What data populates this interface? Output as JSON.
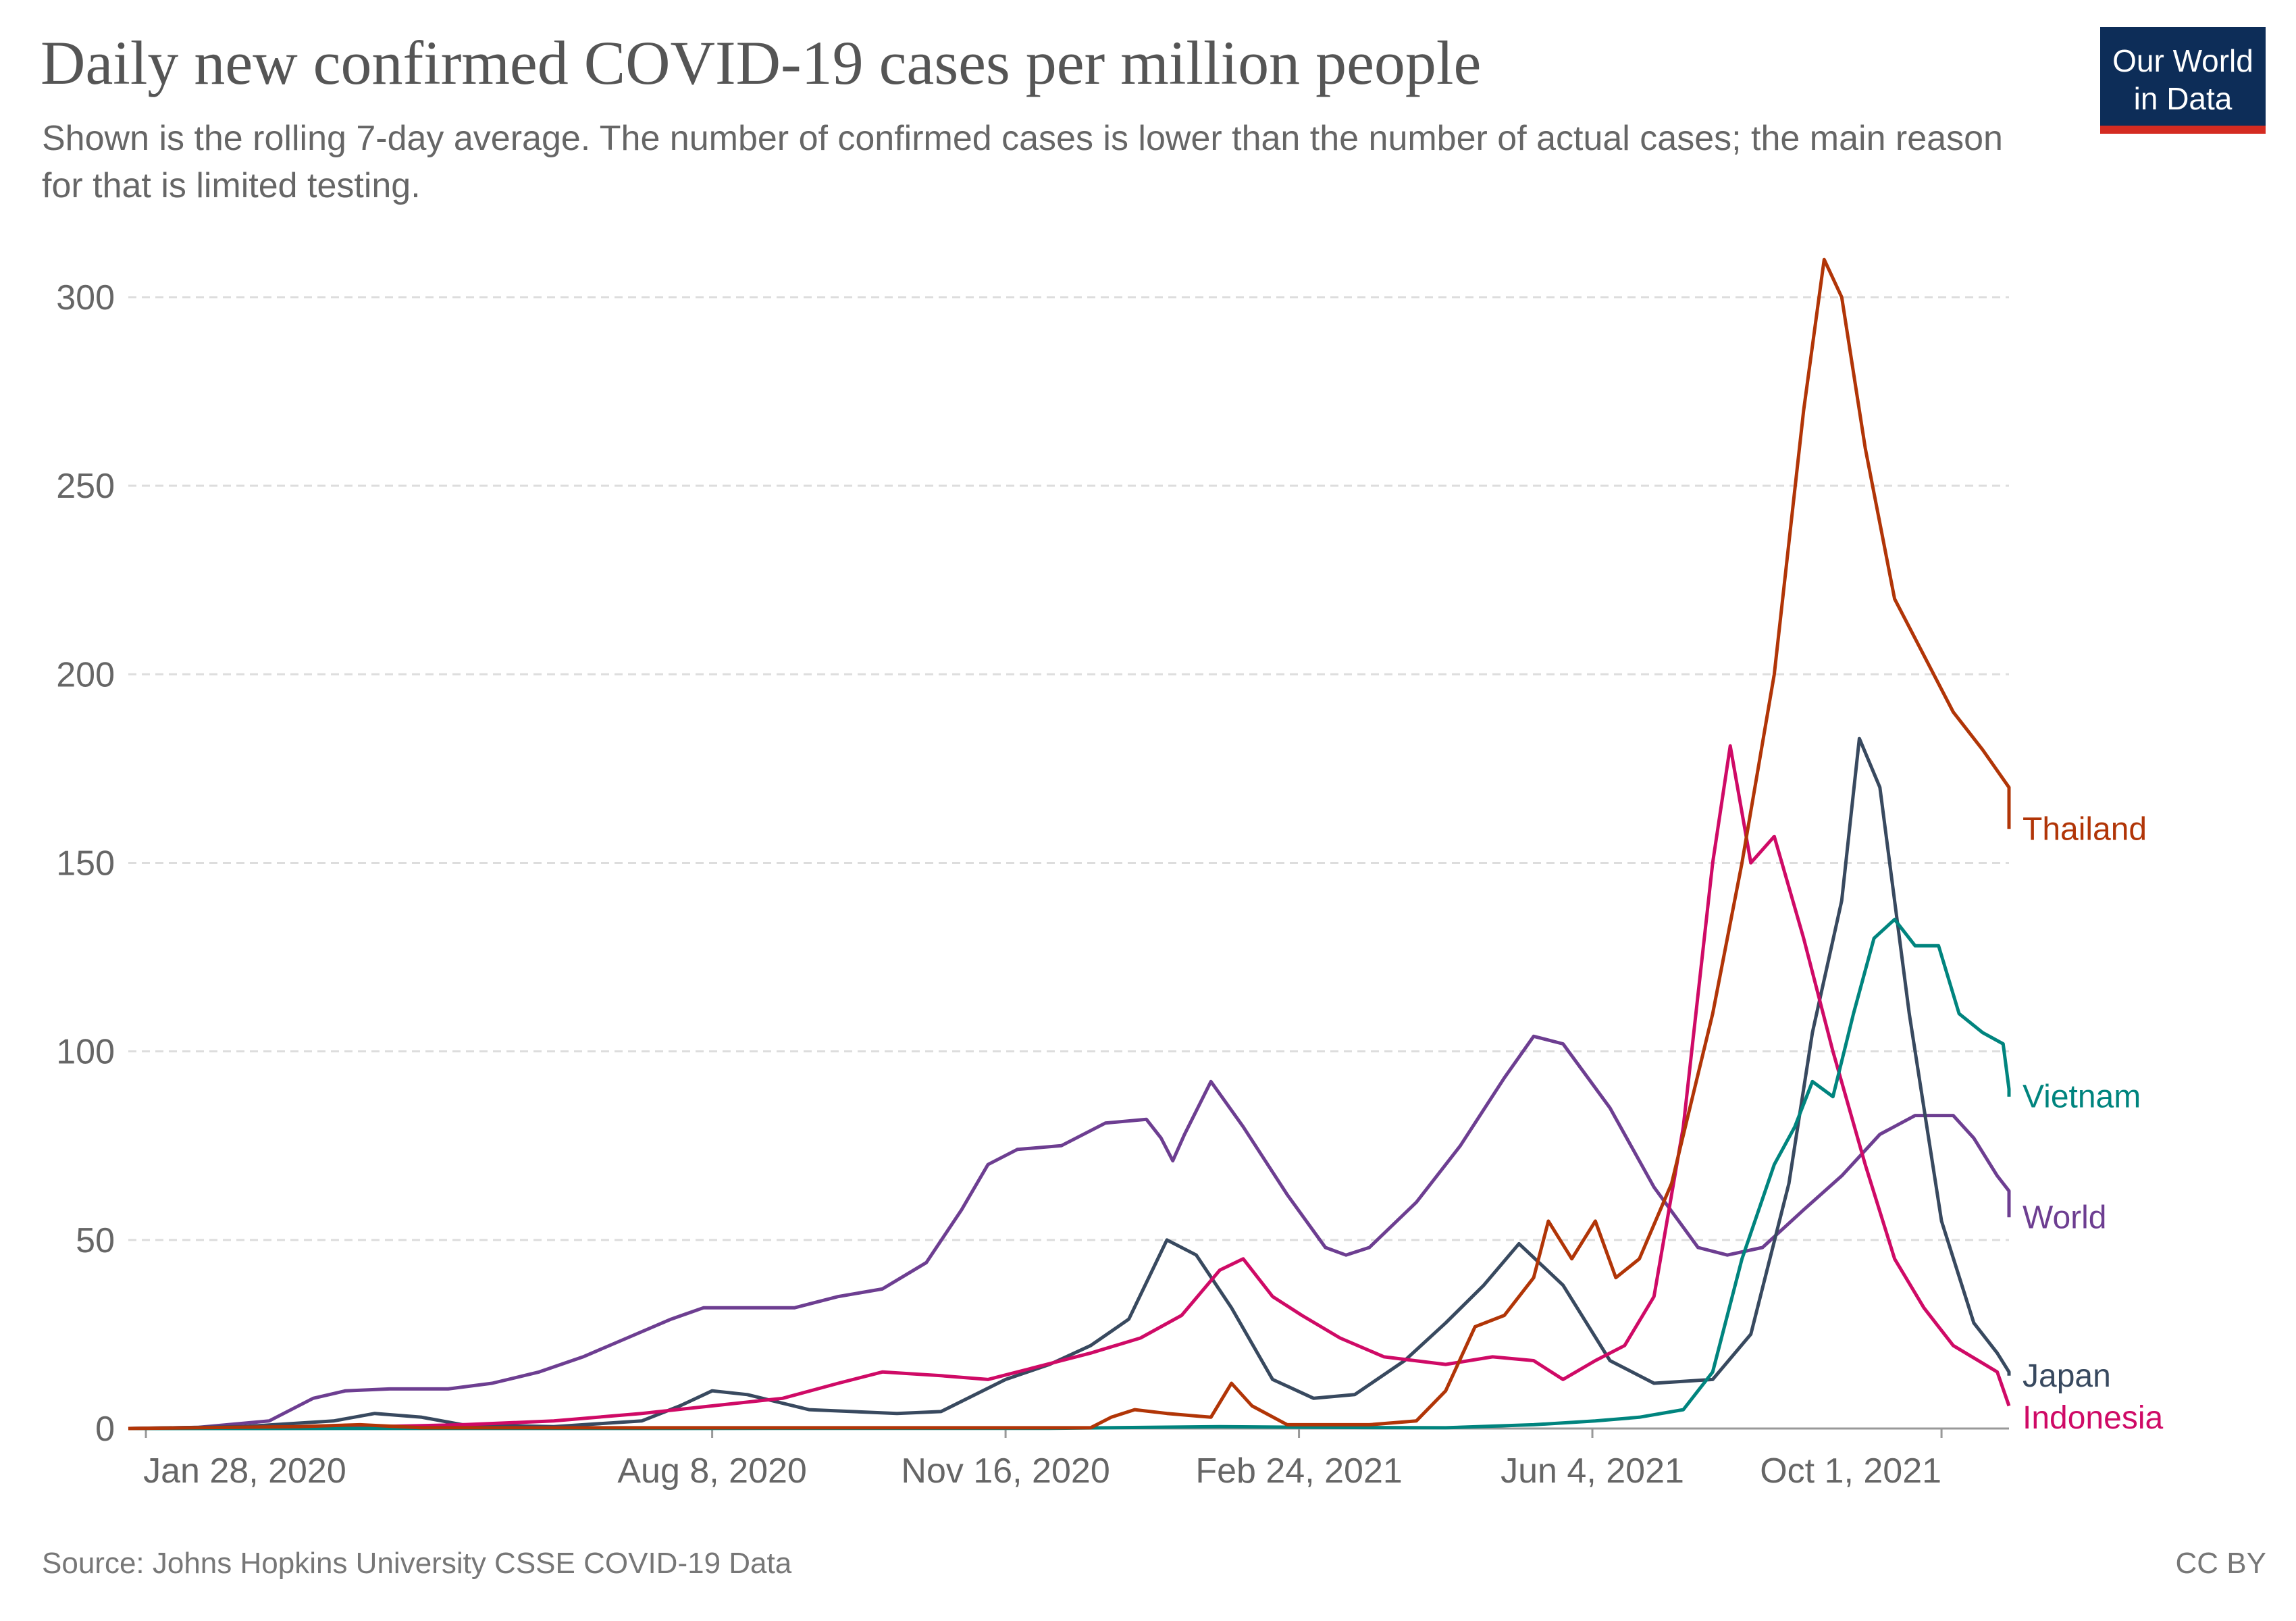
{
  "header": {
    "title": "Daily new confirmed COVID-19 cases per million people",
    "subtitle": "Shown is the rolling 7-day average. The number of confirmed cases is lower than the number of actual cases; the main reason for that is limited testing."
  },
  "logo": {
    "line1": "Our World",
    "line2": "in Data"
  },
  "footer": {
    "source": "Source: Johns Hopkins University CSSE COVID-19 Data",
    "license": "CC BY"
  },
  "colors": {
    "brand_navy": "#0d2d58",
    "brand_red": "#d42b21",
    "Thailand": "#b13507",
    "Vietnam": "#00847e",
    "World": "#6d3e91",
    "Japan": "#38495f",
    "Indonesia": "#cf0a66"
  },
  "chart_data": {
    "type": "line",
    "title": "Daily new confirmed COVID-19 cases per million people",
    "x_type": "date",
    "x_range": [
      "2020-01-22",
      "2021-10-24"
    ],
    "xticks": [
      {
        "date": "2020-01-28",
        "label": "Jan 28, 2020"
      },
      {
        "date": "2020-08-08",
        "label": "Aug 8, 2020"
      },
      {
        "date": "2020-11-16",
        "label": "Nov 16, 2020"
      },
      {
        "date": "2021-02-24",
        "label": "Feb 24, 2021"
      },
      {
        "date": "2021-06-04",
        "label": "Jun 4, 2021"
      },
      {
        "date": "2021-10-01",
        "label": "Oct 1, 2021"
      }
    ],
    "ylim": [
      0,
      300
    ],
    "yticks": [
      0,
      50,
      100,
      150,
      200,
      250,
      300
    ],
    "grid": "horizontal dashed",
    "legend": "line-end labels",
    "series": [
      {
        "name": "World",
        "points": [
          [
            "2020-01-22",
            0
          ],
          [
            "2020-02-15",
            0.3
          ],
          [
            "2020-03-10",
            2
          ],
          [
            "2020-03-25",
            8
          ],
          [
            "2020-04-05",
            10
          ],
          [
            "2020-04-20",
            10.5
          ],
          [
            "2020-05-10",
            10.5
          ],
          [
            "2020-05-25",
            12
          ],
          [
            "2020-06-10",
            15
          ],
          [
            "2020-06-25",
            19
          ],
          [
            "2020-07-10",
            24
          ],
          [
            "2020-07-25",
            29
          ],
          [
            "2020-08-05",
            32
          ],
          [
            "2020-08-20",
            32
          ],
          [
            "2020-09-05",
            32
          ],
          [
            "2020-09-20",
            35
          ],
          [
            "2020-10-05",
            37
          ],
          [
            "2020-10-20",
            44
          ],
          [
            "2020-11-01",
            58
          ],
          [
            "2020-11-10",
            70
          ],
          [
            "2020-11-20",
            74
          ],
          [
            "2020-12-05",
            75
          ],
          [
            "2020-12-20",
            81
          ],
          [
            "2021-01-03",
            82
          ],
          [
            "2021-01-08",
            77
          ],
          [
            "2021-01-12",
            71
          ],
          [
            "2021-01-16",
            78
          ],
          [
            "2021-01-25",
            92
          ],
          [
            "2021-02-05",
            80
          ],
          [
            "2021-02-20",
            62
          ],
          [
            "2021-03-05",
            48
          ],
          [
            "2021-03-12",
            46
          ],
          [
            "2021-03-20",
            48
          ],
          [
            "2021-04-05",
            60
          ],
          [
            "2021-04-20",
            75
          ],
          [
            "2021-05-05",
            93
          ],
          [
            "2021-05-15",
            104
          ],
          [
            "2021-05-25",
            102
          ],
          [
            "2021-06-10",
            85
          ],
          [
            "2021-06-25",
            64
          ],
          [
            "2021-07-10",
            48
          ],
          [
            "2021-07-20",
            46
          ],
          [
            "2021-08-01",
            48
          ],
          [
            "2021-08-15",
            58
          ],
          [
            "2021-08-28",
            67
          ],
          [
            "2021-09-10",
            78
          ],
          [
            "2021-09-22",
            83
          ],
          [
            "2021-10-05",
            83
          ],
          [
            "2021-10-12",
            77
          ],
          [
            "2021-10-20",
            67
          ],
          [
            "2021-10-28",
            63
          ],
          [
            "2021-11-05",
            57
          ],
          [
            "2021-11-08",
            56
          ]
        ]
      },
      {
        "name": "Japan",
        "points": [
          [
            "2020-01-22",
            0
          ],
          [
            "2020-03-01",
            0.5
          ],
          [
            "2020-04-01",
            2
          ],
          [
            "2020-04-15",
            4
          ],
          [
            "2020-05-01",
            3
          ],
          [
            "2020-05-15",
            1
          ],
          [
            "2020-06-15",
            0.5
          ],
          [
            "2020-07-15",
            2
          ],
          [
            "2020-07-28",
            6
          ],
          [
            "2020-08-08",
            10
          ],
          [
            "2020-08-20",
            9
          ],
          [
            "2020-09-10",
            5
          ],
          [
            "2020-10-10",
            4
          ],
          [
            "2020-10-25",
            4.5
          ],
          [
            "2020-11-16",
            13
          ],
          [
            "2020-12-01",
            17
          ],
          [
            "2020-12-15",
            22
          ],
          [
            "2020-12-28",
            29
          ],
          [
            "2021-01-10",
            50
          ],
          [
            "2021-01-20",
            46
          ],
          [
            "2021-02-01",
            32
          ],
          [
            "2021-02-15",
            13
          ],
          [
            "2021-03-01",
            8
          ],
          [
            "2021-03-15",
            9
          ],
          [
            "2021-04-01",
            18
          ],
          [
            "2021-04-15",
            28
          ],
          [
            "2021-04-28",
            38
          ],
          [
            "2021-05-10",
            49
          ],
          [
            "2021-05-25",
            38
          ],
          [
            "2021-06-10",
            18
          ],
          [
            "2021-06-25",
            12
          ],
          [
            "2021-07-15",
            13
          ],
          [
            "2021-07-28",
            25
          ],
          [
            "2021-08-10",
            65
          ],
          [
            "2021-08-18",
            105
          ],
          [
            "2021-08-28",
            140
          ],
          [
            "2021-09-03",
            183
          ],
          [
            "2021-09-10",
            170
          ],
          [
            "2021-09-20",
            110
          ],
          [
            "2021-10-01",
            55
          ],
          [
            "2021-10-12",
            28
          ],
          [
            "2021-10-20",
            20
          ],
          [
            "2021-10-30",
            15
          ],
          [
            "2021-11-08",
            14
          ]
        ]
      },
      {
        "name": "Indonesia",
        "points": [
          [
            "2020-01-22",
            0
          ],
          [
            "2020-03-10",
            0.1
          ],
          [
            "2020-04-15",
            0.5
          ],
          [
            "2020-05-15",
            1
          ],
          [
            "2020-06-15",
            2
          ],
          [
            "2020-07-15",
            4
          ],
          [
            "2020-08-08",
            6
          ],
          [
            "2020-09-01",
            8
          ],
          [
            "2020-09-20",
            12
          ],
          [
            "2020-10-05",
            15
          ],
          [
            "2020-10-25",
            14
          ],
          [
            "2020-11-10",
            13
          ],
          [
            "2020-11-25",
            16
          ],
          [
            "2020-12-15",
            20
          ],
          [
            "2021-01-01",
            24
          ],
          [
            "2021-01-15",
            30
          ],
          [
            "2021-01-28",
            42
          ],
          [
            "2021-02-05",
            45
          ],
          [
            "2021-02-15",
            35
          ],
          [
            "2021-02-25",
            30
          ],
          [
            "2021-03-10",
            24
          ],
          [
            "2021-03-25",
            19
          ],
          [
            "2021-04-15",
            17
          ],
          [
            "2021-05-01",
            19
          ],
          [
            "2021-05-15",
            18
          ],
          [
            "2021-05-25",
            13
          ],
          [
            "2021-06-05",
            18
          ],
          [
            "2021-06-15",
            22
          ],
          [
            "2021-06-25",
            35
          ],
          [
            "2021-07-05",
            80
          ],
          [
            "2021-07-15",
            150
          ],
          [
            "2021-07-21",
            181
          ],
          [
            "2021-07-28",
            150
          ],
          [
            "2021-08-05",
            157
          ],
          [
            "2021-08-15",
            130
          ],
          [
            "2021-08-25",
            100
          ],
          [
            "2021-09-05",
            70
          ],
          [
            "2021-09-15",
            45
          ],
          [
            "2021-09-25",
            32
          ],
          [
            "2021-10-05",
            22
          ],
          [
            "2021-10-20",
            15
          ],
          [
            "2021-11-08",
            6
          ]
        ]
      },
      {
        "name": "Vietnam",
        "points": [
          [
            "2020-01-22",
            0
          ],
          [
            "2020-12-01",
            0.05
          ],
          [
            "2021-01-28",
            0.5
          ],
          [
            "2021-03-01",
            0.3
          ],
          [
            "2021-04-15",
            0.2
          ],
          [
            "2021-05-15",
            1
          ],
          [
            "2021-06-05",
            2
          ],
          [
            "2021-06-20",
            3
          ],
          [
            "2021-07-05",
            5
          ],
          [
            "2021-07-15",
            15
          ],
          [
            "2021-07-25",
            45
          ],
          [
            "2021-08-05",
            70
          ],
          [
            "2021-08-12",
            80
          ],
          [
            "2021-08-18",
            92
          ],
          [
            "2021-08-25",
            88
          ],
          [
            "2021-09-01",
            110
          ],
          [
            "2021-09-08",
            130
          ],
          [
            "2021-09-15",
            135
          ],
          [
            "2021-09-22",
            128
          ],
          [
            "2021-09-30",
            128
          ],
          [
            "2021-10-07",
            110
          ],
          [
            "2021-10-15",
            105
          ],
          [
            "2021-10-22",
            102
          ],
          [
            "2021-10-28",
            90
          ],
          [
            "2021-11-08",
            88
          ]
        ]
      },
      {
        "name": "Thailand",
        "points": [
          [
            "2020-01-22",
            0
          ],
          [
            "2020-03-20",
            0.5
          ],
          [
            "2020-04-10",
            1
          ],
          [
            "2020-05-01",
            0.2
          ],
          [
            "2020-12-15",
            0.2
          ],
          [
            "2020-12-22",
            3
          ],
          [
            "2020-12-30",
            5
          ],
          [
            "2021-01-10",
            4
          ],
          [
            "2021-01-25",
            3
          ],
          [
            "2021-02-01",
            12
          ],
          [
            "2021-02-08",
            6
          ],
          [
            "2021-02-20",
            1
          ],
          [
            "2021-03-20",
            1
          ],
          [
            "2021-04-05",
            2
          ],
          [
            "2021-04-15",
            10
          ],
          [
            "2021-04-25",
            27
          ],
          [
            "2021-05-05",
            30
          ],
          [
            "2021-05-15",
            40
          ],
          [
            "2021-05-20",
            55
          ],
          [
            "2021-05-28",
            45
          ],
          [
            "2021-06-05",
            55
          ],
          [
            "2021-06-12",
            40
          ],
          [
            "2021-06-20",
            45
          ],
          [
            "2021-07-01",
            65
          ],
          [
            "2021-07-15",
            110
          ],
          [
            "2021-07-25",
            150
          ],
          [
            "2021-08-05",
            200
          ],
          [
            "2021-08-15",
            270
          ],
          [
            "2021-08-22",
            310
          ],
          [
            "2021-08-28",
            300
          ],
          [
            "2021-09-05",
            260
          ],
          [
            "2021-09-15",
            220
          ],
          [
            "2021-09-25",
            205
          ],
          [
            "2021-10-05",
            190
          ],
          [
            "2021-10-15",
            180
          ],
          [
            "2021-10-25",
            170
          ],
          [
            "2021-11-08",
            159
          ]
        ]
      }
    ]
  }
}
